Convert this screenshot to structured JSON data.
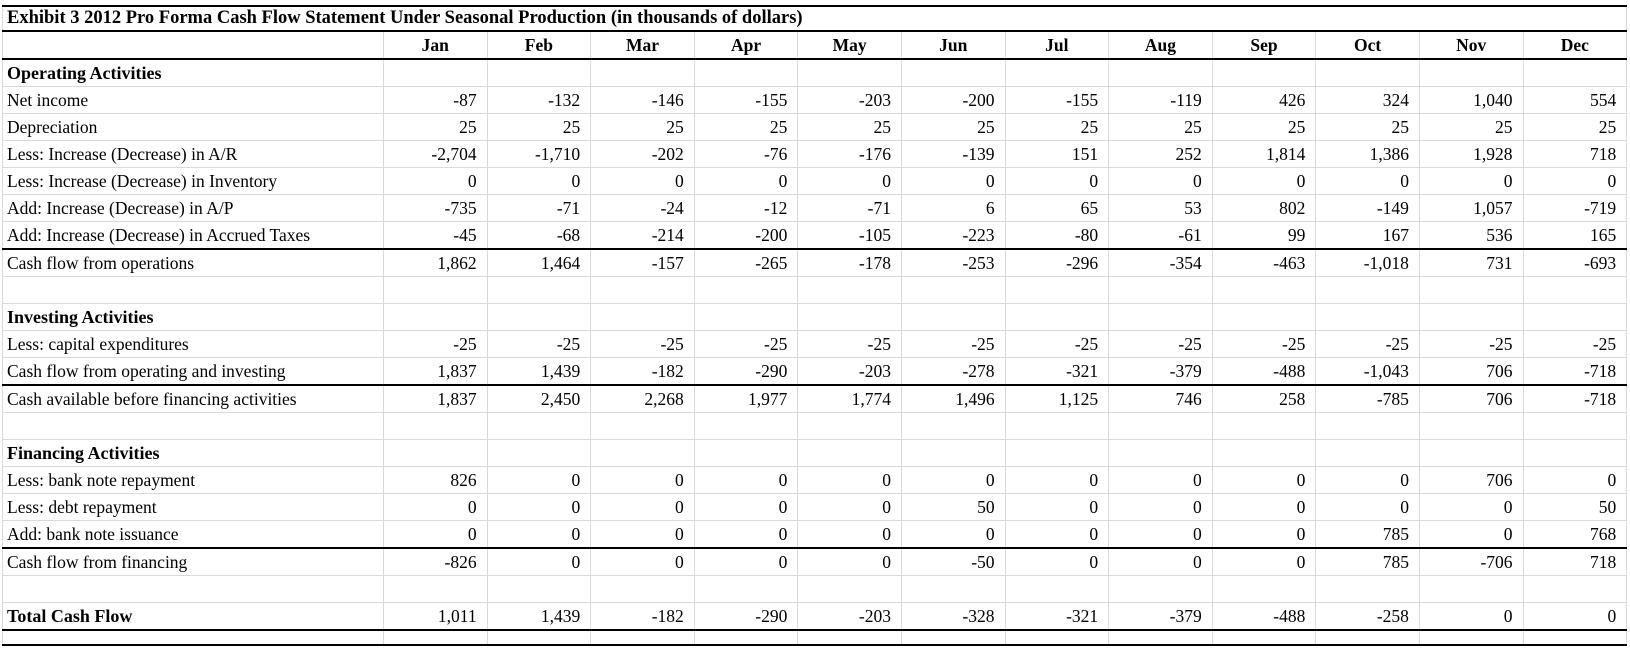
{
  "title": "Exhibit 3 2012 Pro Forma Cash Flow Statement Under Seasonal Production (in thousands of dollars)",
  "columns": [
    "Jan",
    "Feb",
    "Mar",
    "Apr",
    "May",
    "Jun",
    "Jul",
    "Aug",
    "Sep",
    "Oct",
    "Nov",
    "Dec"
  ],
  "rows": [
    {
      "type": "section",
      "label": "Operating Activities"
    },
    {
      "type": "data",
      "label": "Net income",
      "values": [
        "-87",
        "-132",
        "-146",
        "-155",
        "-203",
        "-200",
        "-155",
        "-119",
        "426",
        "324",
        "1,040",
        "554"
      ]
    },
    {
      "type": "data",
      "label": "Depreciation",
      "values": [
        "25",
        "25",
        "25",
        "25",
        "25",
        "25",
        "25",
        "25",
        "25",
        "25",
        "25",
        "25"
      ]
    },
    {
      "type": "data",
      "label": "Less: Increase (Decrease) in A/R",
      "values": [
        "-2,704",
        "-1,710",
        "-202",
        "-76",
        "-176",
        "-139",
        "151",
        "252",
        "1,814",
        "1,386",
        "1,928",
        "718"
      ]
    },
    {
      "type": "data",
      "label": "Less: Increase (Decrease) in Inventory",
      "values": [
        "0",
        "0",
        "0",
        "0",
        "0",
        "0",
        "0",
        "0",
        "0",
        "0",
        "0",
        "0"
      ]
    },
    {
      "type": "data",
      "label": "Add: Increase (Decrease) in A/P",
      "values": [
        "-735",
        "-71",
        "-24",
        "-12",
        "-71",
        "6",
        "65",
        "53",
        "802",
        "-149",
        "1,057",
        "-719"
      ]
    },
    {
      "type": "data",
      "label": "Add: Increase (Decrease) in Accrued Taxes",
      "values": [
        "-45",
        "-68",
        "-214",
        "-200",
        "-105",
        "-223",
        "-80",
        "-61",
        "99",
        "167",
        "536",
        "165"
      ],
      "rule_below": true
    },
    {
      "type": "data",
      "label": "Cash flow from operations",
      "values": [
        "1,862",
        "1,464",
        "-157",
        "-265",
        "-178",
        "-253",
        "-296",
        "-354",
        "-463",
        "-1,018",
        "731",
        "-693"
      ]
    },
    {
      "type": "blank"
    },
    {
      "type": "section",
      "label": "Investing Activities"
    },
    {
      "type": "data",
      "label": "Less: capital expenditures",
      "values": [
        "-25",
        "-25",
        "-25",
        "-25",
        "-25",
        "-25",
        "-25",
        "-25",
        "-25",
        "-25",
        "-25",
        "-25"
      ]
    },
    {
      "type": "data",
      "label": "Cash flow from operating and investing",
      "values": [
        "1,837",
        "1,439",
        "-182",
        "-290",
        "-203",
        "-278",
        "-321",
        "-379",
        "-488",
        "-1,043",
        "706",
        "-718"
      ],
      "rule_below": true
    },
    {
      "type": "data",
      "label": "Cash available before financing activities",
      "values": [
        "1,837",
        "2,450",
        "2,268",
        "1,977",
        "1,774",
        "1,496",
        "1,125",
        "746",
        "258",
        "-785",
        "706",
        "-718"
      ]
    },
    {
      "type": "blank"
    },
    {
      "type": "section",
      "label": "Financing Activities"
    },
    {
      "type": "data",
      "label": "Less: bank note repayment",
      "values": [
        "826",
        "0",
        "0",
        "0",
        "0",
        "0",
        "0",
        "0",
        "0",
        "0",
        "706",
        "0"
      ]
    },
    {
      "type": "data",
      "label": "Less: debt repayment",
      "values": [
        "0",
        "0",
        "0",
        "0",
        "0",
        "50",
        "0",
        "0",
        "0",
        "0",
        "0",
        "50"
      ]
    },
    {
      "type": "data",
      "label": "Add: bank note issuance",
      "values": [
        "0",
        "0",
        "0",
        "0",
        "0",
        "0",
        "0",
        "0",
        "0",
        "785",
        "0",
        "768"
      ],
      "rule_below": true
    },
    {
      "type": "data",
      "label": "Cash flow from financing",
      "values": [
        "-826",
        "0",
        "0",
        "0",
        "0",
        "-50",
        "0",
        "0",
        "0",
        "785",
        "-706",
        "718"
      ]
    },
    {
      "type": "blank"
    },
    {
      "type": "total",
      "label": "Total Cash Flow",
      "values": [
        "1,011",
        "1,439",
        "-182",
        "-290",
        "-203",
        "-328",
        "-321",
        "-379",
        "-488",
        "-258",
        "0",
        "0"
      ],
      "rule_below": true
    }
  ]
}
